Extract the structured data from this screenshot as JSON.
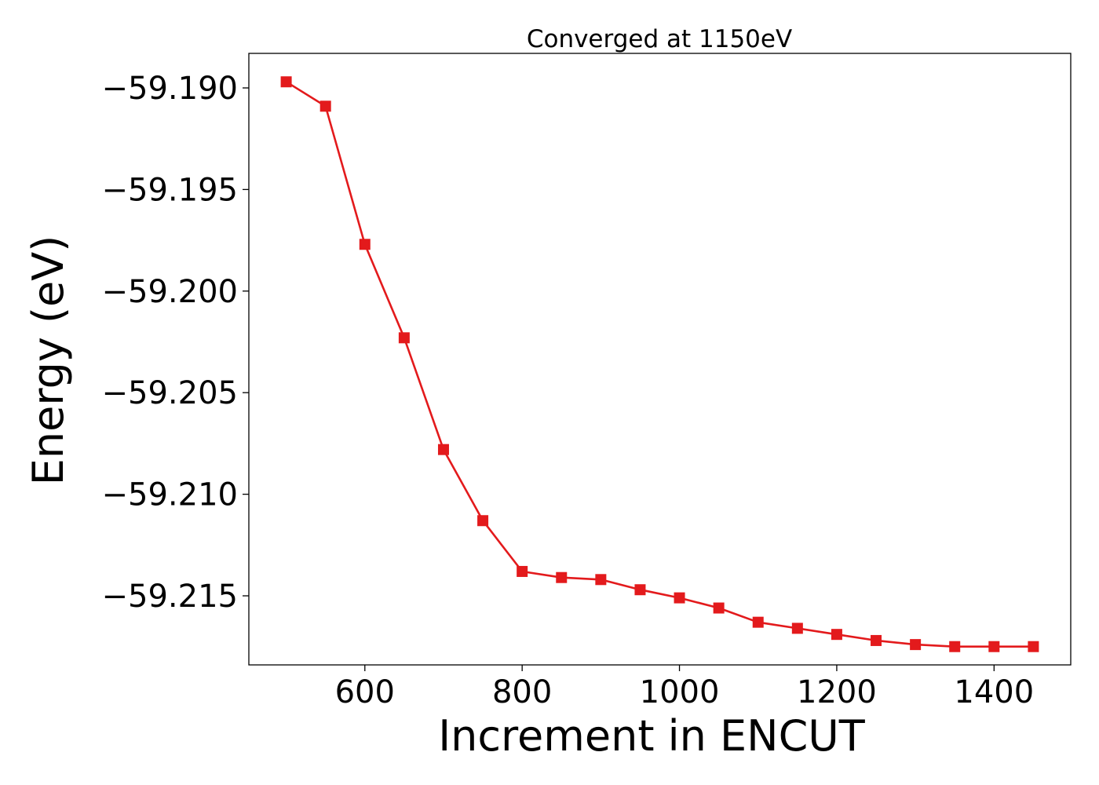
{
  "chart_data": {
    "type": "line",
    "title": "Converged at 1150eV",
    "xlabel": "Increment in ENCUT",
    "ylabel": "Energy (eV)",
    "xlim": [
      452.5,
      1497.5
    ],
    "ylim": [
      -59.2184,
      -59.1883
    ],
    "xticks": [
      600,
      800,
      1000,
      1200,
      1400
    ],
    "xtick_labels": [
      "600",
      "800",
      "1000",
      "1200",
      "1400"
    ],
    "yticks": [
      -59.19,
      -59.195,
      -59.2,
      -59.205,
      -59.21,
      -59.215
    ],
    "ytick_labels": [
      "−59.190",
      "−59.195",
      "−59.200",
      "−59.205",
      "−59.210",
      "−59.215"
    ],
    "grid": false,
    "series": [
      {
        "color": "#e31a1c",
        "marker": "square",
        "x": [
          500,
          550,
          600,
          650,
          700,
          750,
          800,
          850,
          900,
          950,
          1000,
          1050,
          1100,
          1150,
          1200,
          1250,
          1300,
          1350,
          1400,
          1450
        ],
        "y": [
          -59.1897,
          -59.1909,
          -59.1977,
          -59.2023,
          -59.2078,
          -59.2113,
          -59.2138,
          -59.2141,
          -59.2142,
          -59.2147,
          -59.2151,
          -59.2156,
          -59.2163,
          -59.2166,
          -59.2169,
          -59.2172,
          -59.2174,
          -59.2175,
          -59.2175,
          -59.2175
        ]
      }
    ]
  }
}
